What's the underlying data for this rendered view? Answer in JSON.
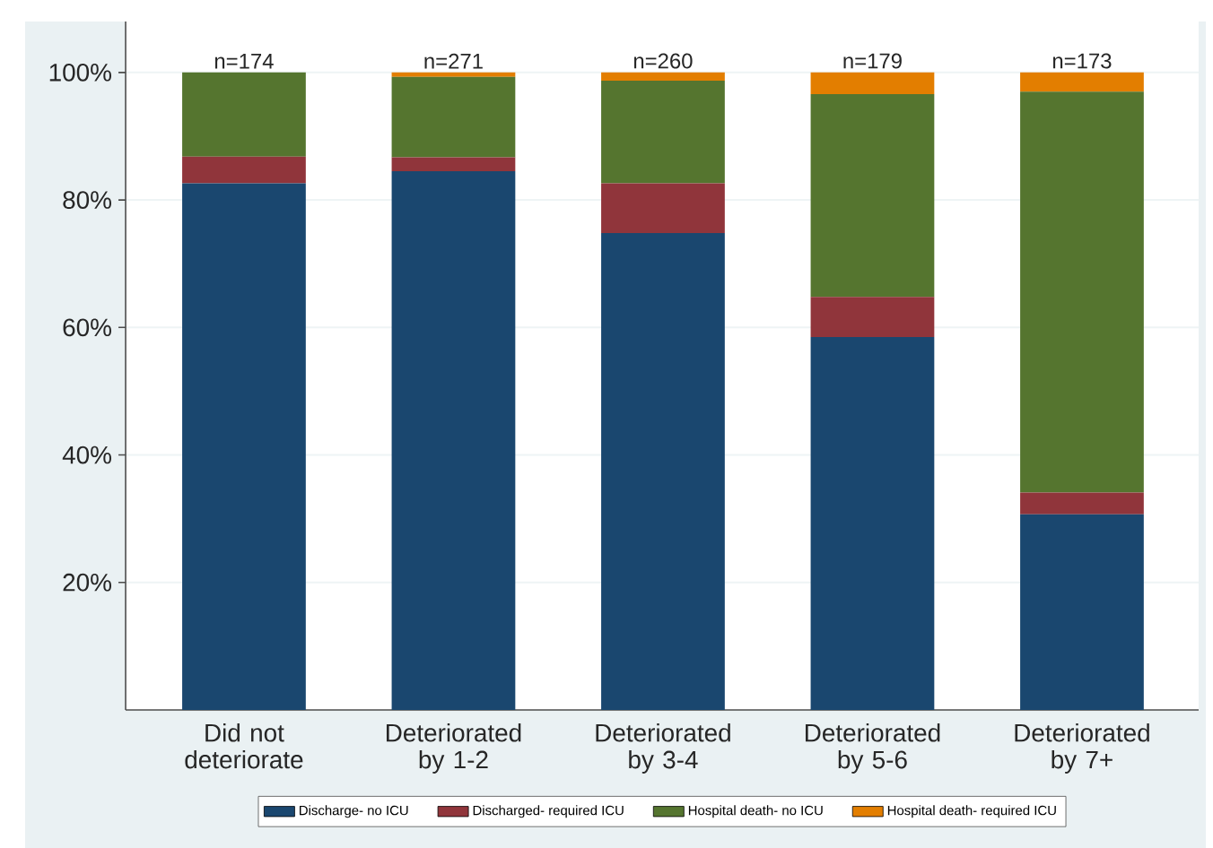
{
  "chart_data": {
    "type": "bar",
    "stacked": true,
    "categories": [
      "Did not deteriorate",
      "Deteriorated by 1-2",
      "Deteriorated by 3-4",
      "Deteriorated by 5-6",
      "Deteriorated by 7+"
    ],
    "series": [
      {
        "name": "Discharge- no ICU",
        "color": "#1a476f",
        "values": [
          82.6,
          84.5,
          74.8,
          58.5,
          30.7
        ]
      },
      {
        "name": "Discharged- required ICU",
        "color": "#90353b",
        "values": [
          4.2,
          2.2,
          7.8,
          6.3,
          3.4
        ]
      },
      {
        "name": "Hospital death- no ICU",
        "color": "#55752f",
        "values": [
          13.2,
          12.6,
          16.1,
          31.8,
          62.9
        ]
      },
      {
        "name": "Hospital death- required ICU",
        "color": "#e37e00",
        "values": [
          0,
          0.7,
          1.3,
          3.4,
          3.0
        ]
      }
    ],
    "ylim": [
      0,
      108
    ],
    "yticks": [
      {
        "value": 20,
        "label": "20%"
      },
      {
        "value": 40,
        "label": "40%"
      },
      {
        "value": 60,
        "label": "60%"
      },
      {
        "value": 80,
        "label": "80%"
      },
      {
        "value": 100,
        "label": "100%"
      }
    ],
    "grid": "y",
    "legend": "bottom",
    "annotations": [
      {
        "text": "n=174",
        "x": "Did not deteriorate",
        "y": 100
      },
      {
        "text": "n=271",
        "x": "Deteriorated by 1-2",
        "y": 100
      },
      {
        "text": "n=260",
        "x": "Deteriorated by 3-4",
        "y": 100
      },
      {
        "text": "n=179",
        "x": "Deteriorated by 5-6",
        "y": 100
      },
      {
        "text": "n=173",
        "x": "Deteriorated by 7+",
        "y": 100
      }
    ]
  }
}
